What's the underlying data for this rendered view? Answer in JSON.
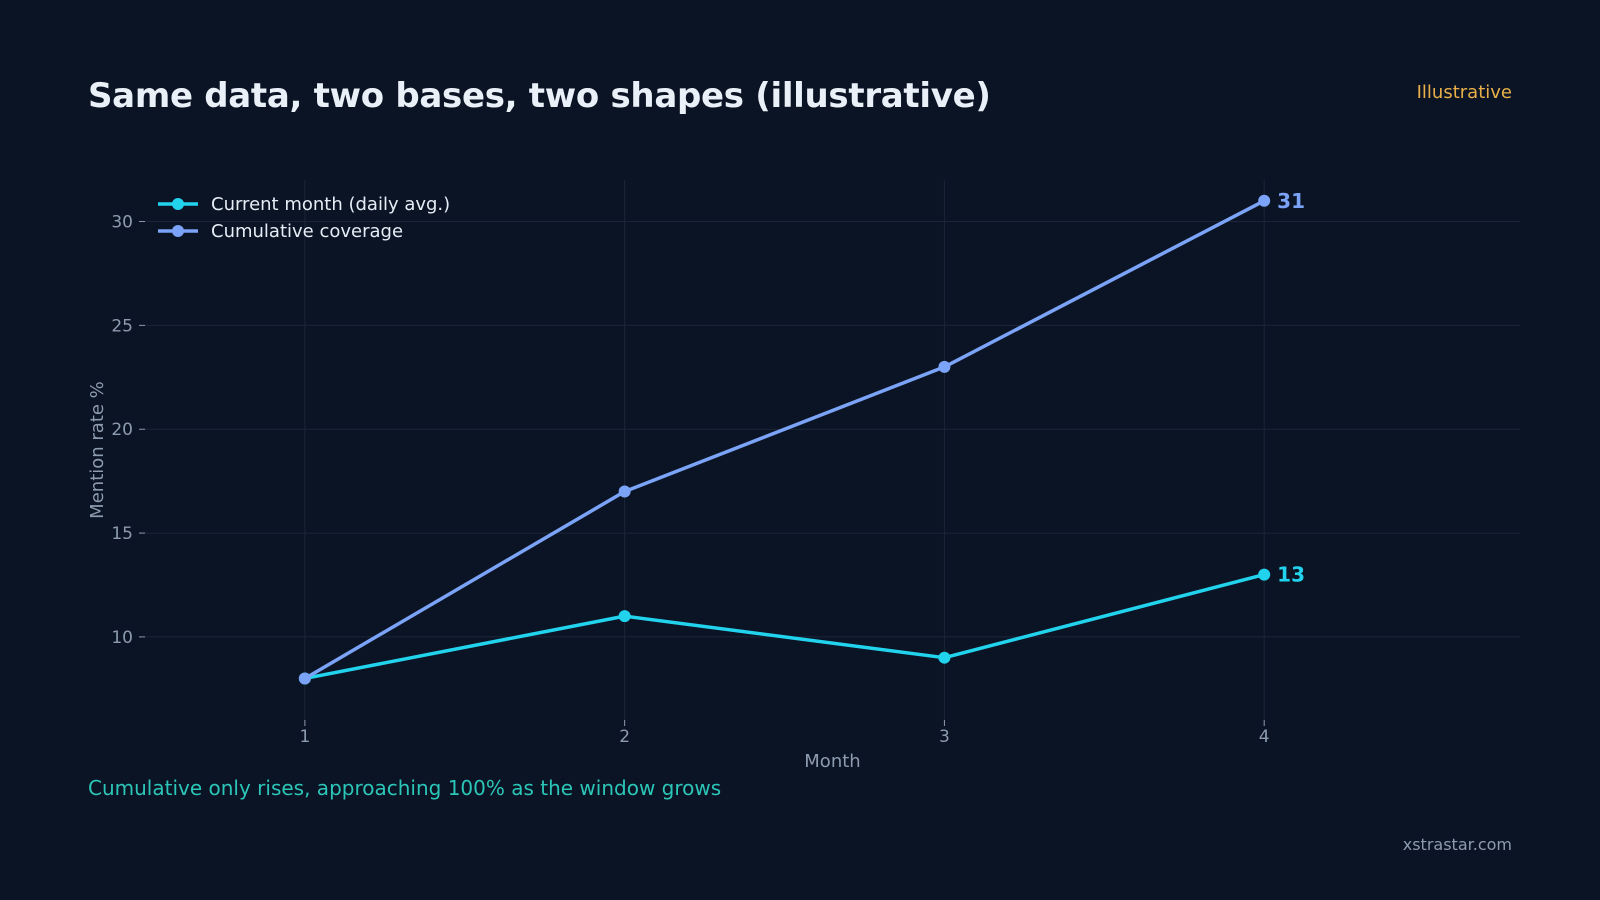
{
  "header": {
    "title": "Same data, two bases, two shapes (illustrative)",
    "badge": "Illustrative"
  },
  "caption": "Cumulative only rises, approaching 100% as the window grows",
  "footer": "xstrastar.com",
  "chart_data": {
    "type": "line",
    "x": [
      1,
      2,
      3,
      4
    ],
    "xlabel": "Month",
    "ylabel": "Mention rate %",
    "xlim": [
      0.5,
      4.8
    ],
    "ylim": [
      6,
      32
    ],
    "xticks": [
      1,
      2,
      3,
      4
    ],
    "yticks": [
      10,
      15,
      20,
      25,
      30
    ],
    "grid": true,
    "legend_position": "top-left",
    "series": [
      {
        "name": "Current month (daily avg.)",
        "values": [
          8,
          11,
          9,
          13
        ],
        "color": "#22d3ee",
        "end_label": "13"
      },
      {
        "name": "Cumulative coverage",
        "values": [
          8,
          17,
          23,
          31
        ],
        "color": "#7ba3f7",
        "end_label": "31"
      }
    ]
  }
}
